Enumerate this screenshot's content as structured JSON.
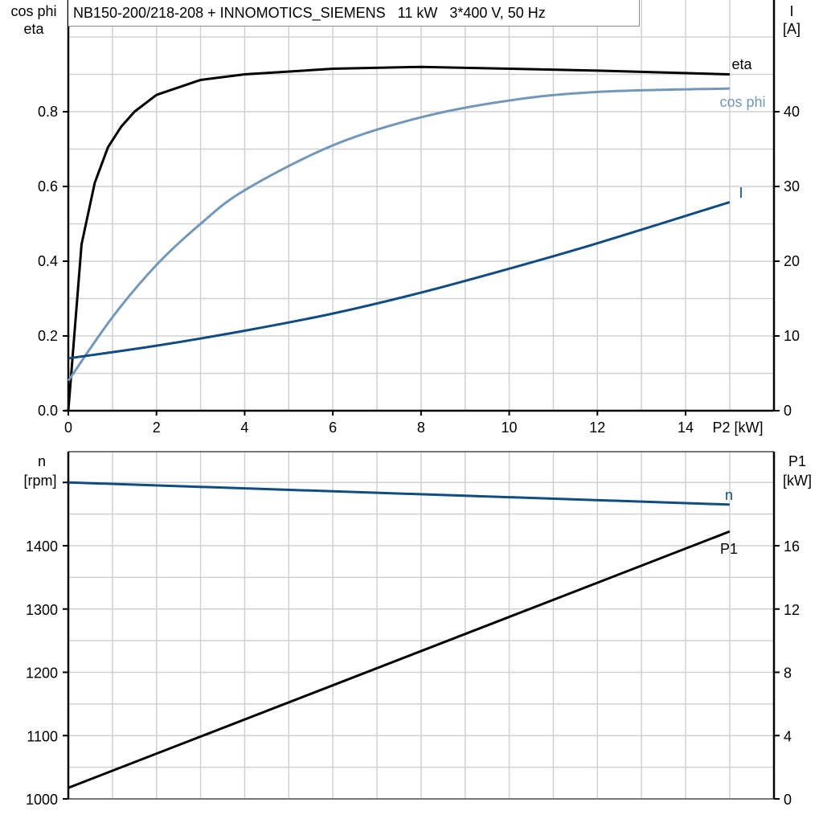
{
  "title": "NB150-200/218-208 + INNOMOTICS_SIEMENS   11 kW   3*400 V, 50 Hz",
  "top_chart": {
    "left_axis_title_line1": "cos phi",
    "left_axis_title_line2": "eta",
    "right_axis_title_line1": "I",
    "right_axis_title_line2": "[A]",
    "x_axis_title": "P2 [kW]",
    "x_ticks": [
      "0",
      "2",
      "4",
      "6",
      "8",
      "10",
      "12",
      "14"
    ],
    "left_ticks": [
      "0.0",
      "0.2",
      "0.4",
      "0.6",
      "0.8"
    ],
    "right_ticks": [
      "0",
      "10",
      "20",
      "30",
      "40"
    ],
    "labels": {
      "eta": "eta",
      "cos_phi": "cos phi",
      "I": "I"
    }
  },
  "bottom_chart": {
    "left_axis_title_line1": "n",
    "left_axis_title_line2": "[rpm]",
    "right_axis_title_line1": "P1",
    "right_axis_title_line2": "[kW]",
    "left_ticks": [
      "1000",
      "1100",
      "1200",
      "1300",
      "1400"
    ],
    "right_ticks": [
      "0",
      "4",
      "8",
      "12",
      "16"
    ],
    "labels": {
      "n": "n",
      "P1": "P1"
    }
  },
  "colors": {
    "eta": "#000000",
    "cos_phi": "#7397b9",
    "I": "#0f4c81",
    "n": "#0f4c81",
    "P1": "#000000",
    "grid": "#d0d0d0"
  },
  "chart_data": [
    {
      "type": "line",
      "title": "NB150-200/218-208 + INNOMOTICS_SIEMENS 11 kW 3*400 V, 50 Hz",
      "xlabel": "P2 [kW]",
      "ylabel": "cos phi / eta",
      "ylabel_right": "I [A]",
      "xlim": [
        0,
        16
      ],
      "ylim": [
        0,
        1.1
      ],
      "ylim_right": [
        0,
        55
      ],
      "grid": true,
      "series": [
        {
          "name": "eta",
          "axis": "left",
          "x": [
            0,
            0.3,
            0.6,
            0.9,
            1.2,
            1.5,
            2,
            3,
            4,
            6,
            8,
            10,
            12,
            15
          ],
          "y": [
            0,
            0.445,
            0.61,
            0.705,
            0.76,
            0.8,
            0.845,
            0.885,
            0.9,
            0.915,
            0.92,
            0.915,
            0.91,
            0.9
          ]
        },
        {
          "name": "cos phi",
          "axis": "left",
          "x": [
            0,
            1,
            2,
            3,
            4,
            6,
            8,
            10,
            12,
            15
          ],
          "y": [
            0.08,
            0.25,
            0.39,
            0.5,
            0.59,
            0.71,
            0.785,
            0.83,
            0.853,
            0.862
          ]
        },
        {
          "name": "I",
          "axis": "right",
          "x": [
            0,
            2,
            4,
            6,
            8,
            10,
            12,
            15
          ],
          "y": [
            7.0,
            8.7,
            10.7,
            13.0,
            15.8,
            19.0,
            22.4,
            27.9
          ]
        }
      ]
    },
    {
      "type": "line",
      "xlabel": "P2 [kW]",
      "ylabel": "n [rpm]",
      "ylabel_right": "P1 [kW]",
      "xlim": [
        0,
        16
      ],
      "ylim": [
        1000,
        1550
      ],
      "ylim_right": [
        0,
        22
      ],
      "grid": true,
      "series": [
        {
          "name": "n",
          "axis": "left",
          "x": [
            0,
            15
          ],
          "y": [
            1500,
            1465
          ]
        },
        {
          "name": "P1",
          "axis": "right",
          "x": [
            0,
            15
          ],
          "y": [
            0.7,
            16.9
          ]
        }
      ]
    }
  ]
}
